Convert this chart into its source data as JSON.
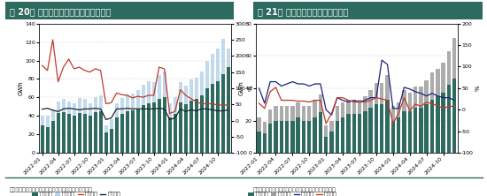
{
  "chart1": {
    "title": "图 20： 中国动力及储能电池分类型产量",
    "source": "数据来源：中国汽车动力电池产业创新联盟，新湖研究所",
    "ylabel_left": "GWh",
    "ylabel_right": "%",
    "ylim_left": [
      0,
      140
    ],
    "ylim_right": [
      -100,
      300
    ],
    "yticks_left": [
      0,
      20,
      40,
      60,
      80,
      100,
      120,
      140
    ],
    "yticks_right": [
      -100,
      -50,
      0,
      50,
      100,
      150,
      200,
      250,
      300
    ],
    "lfp": [
      30,
      28,
      35,
      43,
      44,
      42,
      40,
      43,
      42,
      40,
      44,
      45,
      22,
      26,
      38,
      42,
      45,
      46,
      48,
      52,
      54,
      55,
      58,
      60,
      38,
      42,
      55,
      53,
      57,
      58,
      62,
      70,
      75,
      78,
      85,
      93
    ],
    "ternary": [
      10,
      12,
      12,
      13,
      14,
      14,
      14,
      16,
      16,
      14,
      16,
      17,
      8,
      10,
      16,
      17,
      18,
      18,
      20,
      22,
      24,
      22,
      26,
      28,
      16,
      18,
      22,
      20,
      22,
      23,
      26,
      30,
      32,
      35,
      38,
      20
    ],
    "yoy": [
      170,
      155,
      250,
      120,
      165,
      190,
      160,
      165,
      155,
      150,
      160,
      155,
      52,
      55,
      85,
      80,
      78,
      70,
      75,
      72,
      78,
      78,
      165,
      160,
      22,
      28,
      95,
      78,
      68,
      58,
      52,
      52,
      52,
      48,
      48,
      48
    ],
    "mom": [
      35,
      38,
      32,
      28,
      36,
      38,
      36,
      33,
      36,
      36,
      38,
      36,
      3,
      8,
      36,
      36,
      38,
      36,
      36,
      36,
      36,
      36,
      38,
      36,
      3,
      8,
      36,
      28,
      33,
      30,
      36,
      36,
      33,
      30,
      30,
      33
    ],
    "bar_lfp_color": "#2d6a5f",
    "bar_ternary_color": "#b8d4e8",
    "line_yoy_color": "#c0392b",
    "line_mom_color": "#1a2530",
    "legend": [
      "磷酸鐵锂",
      "三元材料",
      "合计同比",
      "合计环比"
    ]
  },
  "chart2": {
    "title": "图 21： 中国动力电池分类型装车量",
    "source": "数据来源：中国汽车动力电池产业创新联盟，新湖研究所",
    "ylabel_left": "GWh",
    "ylabel_right": "%",
    "ylim_left": [
      0,
      80
    ],
    "ylim_right": [
      -100,
      200
    ],
    "yticks_left": [
      0,
      20,
      40,
      60,
      80
    ],
    "yticks_right": [
      -100,
      -50,
      0,
      50,
      100,
      150,
      200
    ],
    "lfp": [
      13,
      12,
      18,
      20,
      20,
      20,
      20,
      22,
      20,
      20,
      22,
      25,
      10,
      13,
      20,
      22,
      24,
      24,
      24,
      26,
      28,
      30,
      30,
      33,
      20,
      22,
      26,
      26,
      28,
      28,
      30,
      33,
      35,
      37,
      42,
      46
    ],
    "ternary": [
      9,
      7,
      9,
      9,
      9,
      9,
      9,
      9,
      9,
      9,
      11,
      11,
      7,
      7,
      9,
      9,
      9,
      9,
      9,
      9,
      11,
      13,
      13,
      15,
      9,
      9,
      13,
      11,
      13,
      13,
      15,
      17,
      17,
      19,
      21,
      25
    ],
    "yoy": [
      50,
      15,
      65,
      65,
      55,
      60,
      65,
      60,
      60,
      55,
      60,
      60,
      0,
      -12,
      28,
      22,
      18,
      22,
      18,
      22,
      28,
      28,
      115,
      105,
      3,
      3,
      52,
      48,
      42,
      38,
      32,
      38,
      32,
      28,
      28,
      22
    ],
    "mom": [
      15,
      3,
      42,
      52,
      22,
      22,
      22,
      20,
      20,
      18,
      22,
      22,
      -32,
      -8,
      28,
      28,
      22,
      18,
      18,
      18,
      22,
      28,
      25,
      22,
      -32,
      -8,
      28,
      -2,
      13,
      8,
      18,
      13,
      10,
      3,
      8,
      8
    ],
    "bar_lfp_color": "#2d6a5f",
    "bar_ternary_color": "#9e9e9e",
    "line_yoy_color": "#1a237e",
    "line_mom_color": "#c0392b",
    "legend": [
      "磷酸鐵锂",
      "三元材料",
      "合计同比",
      "合计环比"
    ]
  },
  "header_color": "#2d6a5f",
  "header_text_color": "#ffffff",
  "bg_color": "#ffffff",
  "tick_fontsize": 4.5,
  "label_fontsize": 5,
  "legend_fontsize": 4.5,
  "source_fontsize": 4.5,
  "title_fontsize": 7,
  "separator_color": "#2d6a5f"
}
